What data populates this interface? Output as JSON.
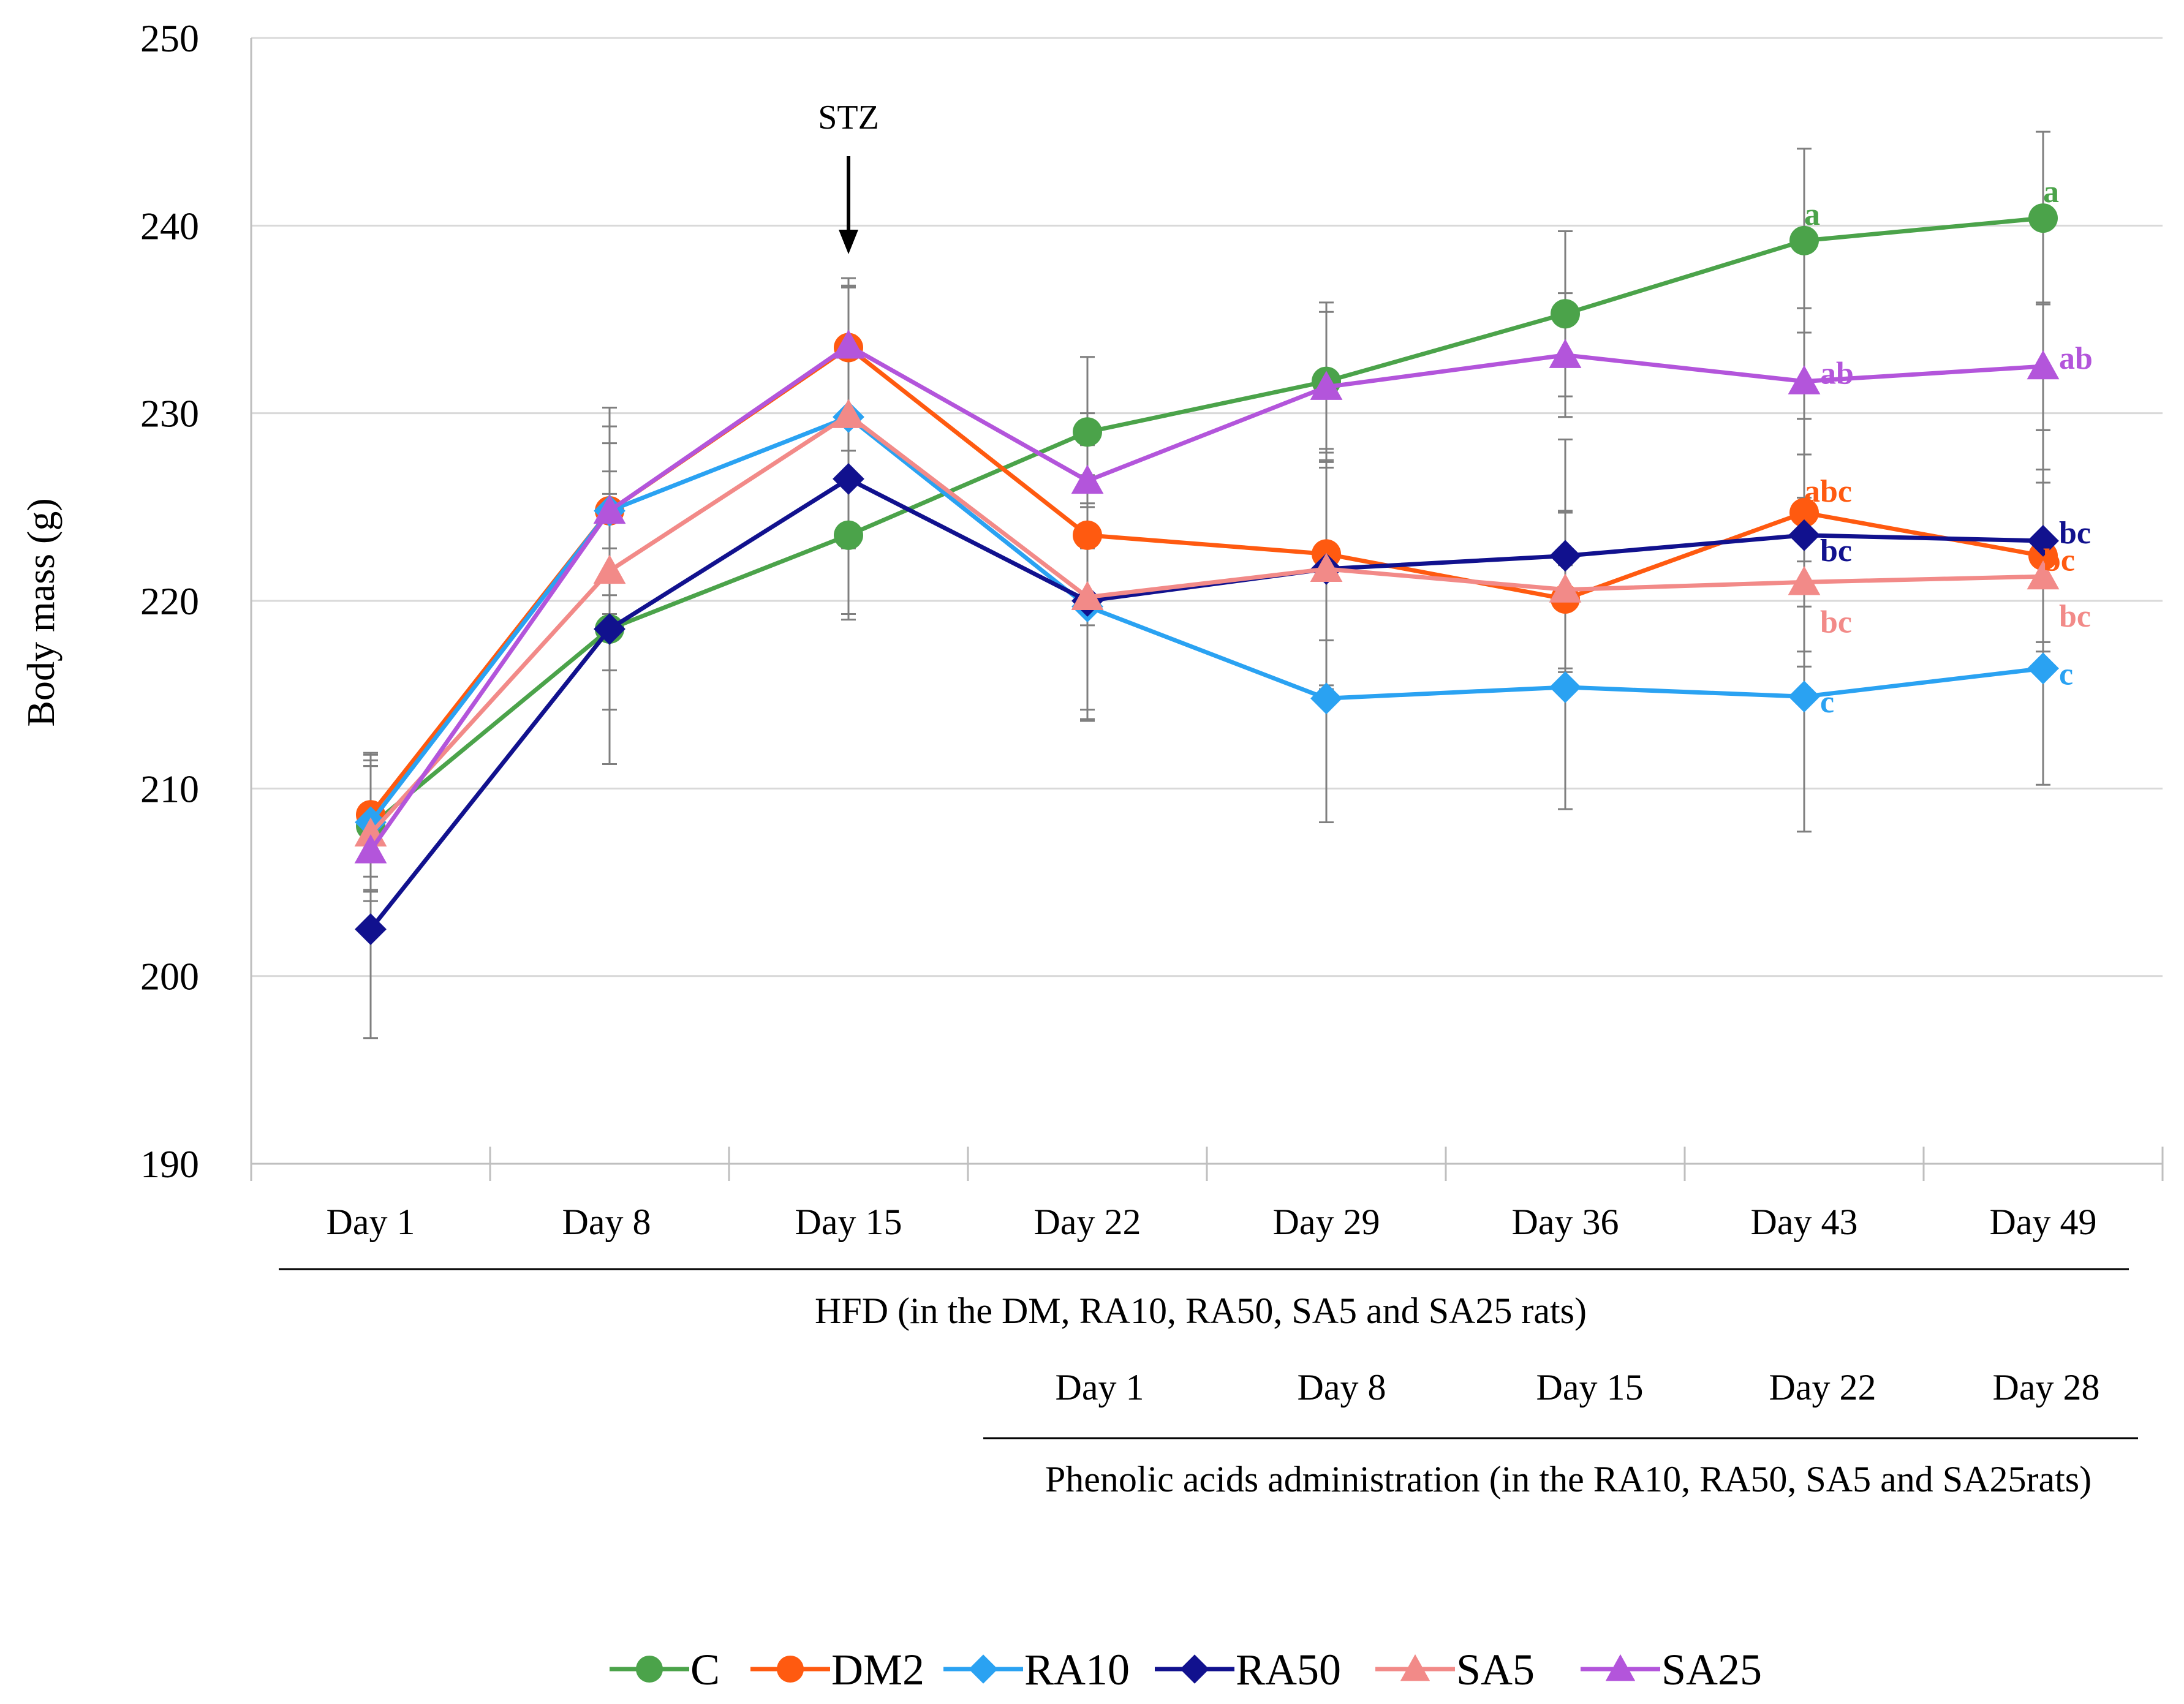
{
  "colors": {
    "C": "#4BA34A",
    "DM2": "#FF5A10",
    "RA10": "#2AA2F2",
    "RA50": "#11118E",
    "SA5": "#F28A88",
    "SA25": "#B355DB",
    "grid": "#d9d9d9",
    "axis": "#bfbfbf",
    "errorbar": "#7f7f7f"
  },
  "chart_data": {
    "type": "line",
    "ylabel": "Body mass (g)",
    "xlabel": "",
    "ylim": [
      190,
      250
    ],
    "yticks": [
      190,
      200,
      210,
      220,
      230,
      240,
      250
    ],
    "categories": [
      "Day 1",
      "Day 8",
      "Day 15",
      "Day 22",
      "Day 29",
      "Day 36",
      "Day 43",
      "Day 49"
    ],
    "grid": true,
    "legend_position": "bottom",
    "annotation": {
      "label": "STZ",
      "at": "Day 15"
    },
    "series": [
      {
        "name": "C",
        "marker": "circle",
        "values": [
          208.0,
          218.5,
          223.5,
          229.0,
          231.7,
          235.3,
          239.2,
          240.4
        ],
        "errors": [
          3.5,
          4.3,
          4.5,
          4.0,
          4.2,
          4.4,
          4.9,
          4.6
        ],
        "significance": [
          "",
          "",
          "",
          "",
          "",
          "",
          "a",
          "a"
        ]
      },
      {
        "name": "DM2",
        "marker": "circle",
        "values": [
          208.6,
          224.8,
          233.5,
          223.5,
          222.5,
          220.1,
          224.7,
          222.4
        ],
        "errors": [
          3.3,
          4.5,
          3.3,
          4.8,
          4.6,
          4.6,
          5.0,
          4.6
        ],
        "significance": [
          "",
          "",
          "",
          "",
          "",
          "",
          "abc",
          "bc"
        ]
      },
      {
        "name": "RA10",
        "marker": "diamond",
        "values": [
          208.2,
          224.8,
          229.8,
          219.7,
          214.8,
          215.4,
          214.9,
          216.4
        ],
        "errors": [
          3.6,
          5.5,
          7.0,
          5.5,
          6.6,
          6.5,
          7.2,
          6.2
        ],
        "significance": [
          "",
          "",
          "",
          "",
          "",
          "",
          "c",
          "c"
        ]
      },
      {
        "name": "RA50",
        "marker": "diamond",
        "values": [
          202.5,
          218.5,
          226.5,
          220.0,
          221.7,
          222.4,
          223.5,
          223.2
        ],
        "errors": [
          5.8,
          7.2,
          7.2,
          6.4,
          6.2,
          6.2,
          6.2,
          5.9
        ],
        "significance": [
          "",
          "",
          "",
          "",
          "",
          "",
          "bc",
          "bc"
        ]
      },
      {
        "name": "SA5",
        "marker": "triangle",
        "values": [
          207.6,
          221.6,
          229.9,
          220.2,
          221.7,
          220.6,
          221.0,
          221.3
        ],
        "errors": [
          3.6,
          5.3,
          6.8,
          6.5,
          6.4,
          4.2,
          4.5,
          5.0
        ],
        "significance": [
          "",
          "",
          "",
          "",
          "",
          "",
          "bc",
          "bc"
        ]
      },
      {
        "name": "SA25",
        "marker": "triangle",
        "values": [
          206.7,
          224.8,
          233.6,
          226.4,
          231.4,
          233.1,
          231.7,
          232.5
        ],
        "errors": [
          4.5,
          3.6,
          3.6,
          3.6,
          4.0,
          3.3,
          3.9,
          3.4
        ],
        "significance": [
          "",
          "",
          "",
          "",
          "",
          "",
          "ab",
          "ab"
        ]
      }
    ],
    "axis_groups": [
      {
        "label": "HFD (in the DM, RA10, RA50, SA5 and SA25 rats)"
      },
      {
        "label": "Phenolic acids administration (in the RA10, RA50, SA5 and SA25rats)",
        "days": [
          "Day 1",
          "Day 8",
          "Day 15",
          "Day 22",
          "Day 28"
        ]
      }
    ]
  }
}
